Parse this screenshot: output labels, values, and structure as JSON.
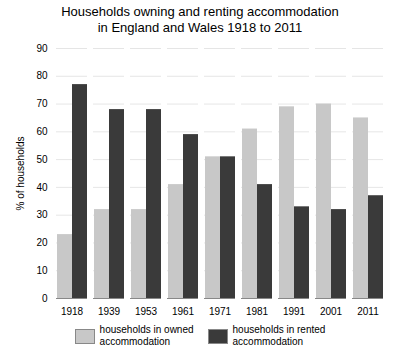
{
  "chart_data": {
    "type": "bar",
    "title": "Households owning and renting accommodation\nin England and Wales 1918 to 2011",
    "categories": [
      "1918",
      "1939",
      "1953",
      "1961",
      "1971",
      "1981",
      "1991",
      "2001",
      "2011"
    ],
    "series": [
      {
        "name": "households in owned\naccommodation",
        "color": "#c8c8c8",
        "values": [
          23,
          32,
          32,
          41,
          51,
          61,
          69,
          70,
          65
        ]
      },
      {
        "name": "households in rented\naccommodation",
        "color": "#3a3a3a",
        "values": [
          77,
          68,
          68,
          59,
          51,
          41,
          33,
          32,
          37
        ]
      }
    ],
    "ylabel": "% of households",
    "ylim": [
      0,
      90
    ],
    "yticks": [
      0,
      10,
      20,
      30,
      40,
      50,
      60,
      70,
      80,
      90
    ],
    "grid": true,
    "legend": "bottom"
  }
}
